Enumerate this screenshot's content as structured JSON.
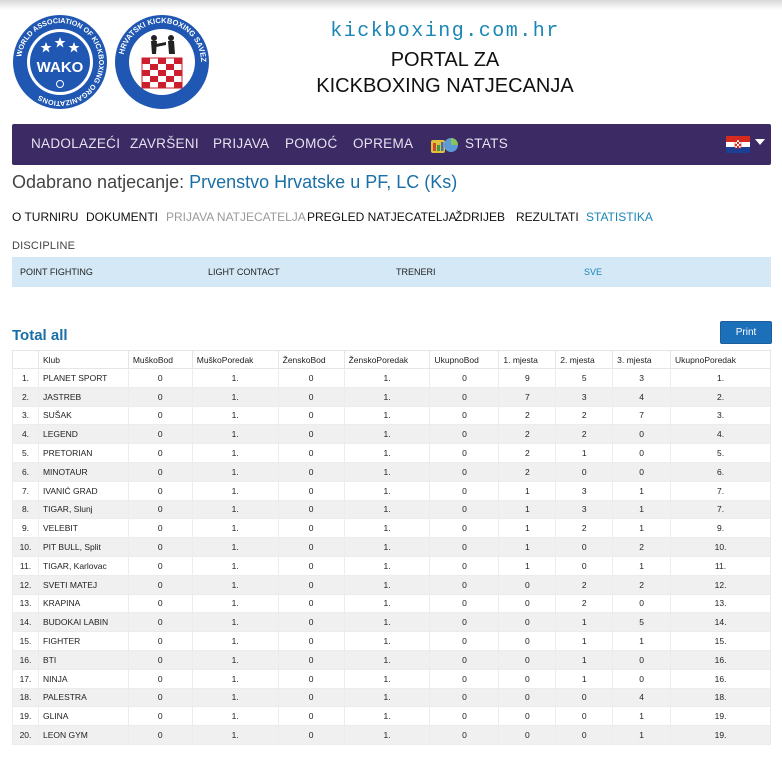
{
  "header": {
    "site_url": "kickboxing.com.hr",
    "title_line1": "PORTAL ZA",
    "title_line2": "KICKBOXING NATJECANJA",
    "wako_logo": {
      "outer_text": "WORLD ASSOCIATION OF KICKBOXING ORGANIZATIONS",
      "inner_text": "WAKO"
    },
    "hks_logo": {
      "outer_text": "HRVATSKI KICKBOXING SAVEZ"
    }
  },
  "nav": {
    "items": [
      "NADOLAZEĆI",
      "ZAVRŠENI",
      "PRIJAVA",
      "POMOĆ",
      "OPREMA"
    ],
    "stats_label": "STATS",
    "stats_icon": "stats-icon",
    "language_icon": "croatian-flag-icon"
  },
  "competition": {
    "prefix": "Odabrano natjecanje:",
    "name": "Prvenstvo Hrvatske u PF, LC (Ks)"
  },
  "subnav": [
    "O TURNIRU",
    "DOKUMENTI",
    "PRIJAVA NATJECATELJA",
    "PREGLED NATJECATELJA",
    "ŽDRIJEB",
    "REZULTATI",
    "STATISTIKA"
  ],
  "disciplines": {
    "label": "DISCIPLINE",
    "items": [
      "POINT FIGHTING",
      "LIGHT CONTACT",
      "TRENERI",
      "SVE"
    ]
  },
  "totals": {
    "title": "Total all",
    "print_label": "Print",
    "columns": [
      "",
      "Klub",
      "MuškoBod",
      "MuškoPoredak",
      "ŽenskoBod",
      "ŽenskoPoredak",
      "UkupnoBod",
      "1. mjesta",
      "2. mjesta",
      "3. mjesta",
      "UkupnoPoredak"
    ],
    "rows": [
      [
        "1.",
        "PLANET SPORT",
        "0",
        "1.",
        "0",
        "1.",
        "0",
        "9",
        "5",
        "3",
        "1."
      ],
      [
        "2.",
        "JASTREB",
        "0",
        "1.",
        "0",
        "1.",
        "0",
        "7",
        "3",
        "4",
        "2."
      ],
      [
        "3.",
        "SUŠAK",
        "0",
        "1.",
        "0",
        "1.",
        "0",
        "2",
        "2",
        "7",
        "3."
      ],
      [
        "4.",
        "LEGEND",
        "0",
        "1.",
        "0",
        "1.",
        "0",
        "2",
        "2",
        "0",
        "4."
      ],
      [
        "5.",
        "PRETORIAN",
        "0",
        "1.",
        "0",
        "1.",
        "0",
        "2",
        "1",
        "0",
        "5."
      ],
      [
        "6.",
        "MINOTAUR",
        "0",
        "1.",
        "0",
        "1.",
        "0",
        "2",
        "0",
        "0",
        "6."
      ],
      [
        "7.",
        "IVANIĆ GRAD",
        "0",
        "1.",
        "0",
        "1.",
        "0",
        "1",
        "3",
        "1",
        "7."
      ],
      [
        "8.",
        "TIGAR, Slunj",
        "0",
        "1.",
        "0",
        "1.",
        "0",
        "1",
        "3",
        "1",
        "7."
      ],
      [
        "9.",
        "VELEBIT",
        "0",
        "1.",
        "0",
        "1.",
        "0",
        "1",
        "2",
        "1",
        "9."
      ],
      [
        "10.",
        "PIT BULL, Split",
        "0",
        "1.",
        "0",
        "1.",
        "0",
        "1",
        "0",
        "2",
        "10."
      ],
      [
        "11.",
        "TIGAR, Karlovac",
        "0",
        "1.",
        "0",
        "1.",
        "0",
        "1",
        "0",
        "1",
        "11."
      ],
      [
        "12.",
        "SVETI MATEJ",
        "0",
        "1.",
        "0",
        "1.",
        "0",
        "0",
        "2",
        "2",
        "12."
      ],
      [
        "13.",
        "KRAPINA",
        "0",
        "1.",
        "0",
        "1.",
        "0",
        "0",
        "2",
        "0",
        "13."
      ],
      [
        "14.",
        "BUDOKAI LABIN",
        "0",
        "1.",
        "0",
        "1.",
        "0",
        "0",
        "1",
        "5",
        "14."
      ],
      [
        "15.",
        "FIGHTER",
        "0",
        "1.",
        "0",
        "1.",
        "0",
        "0",
        "1",
        "1",
        "15."
      ],
      [
        "16.",
        "BTI",
        "0",
        "1.",
        "0",
        "1.",
        "0",
        "0",
        "1",
        "0",
        "16."
      ],
      [
        "17.",
        "NINJA",
        "0",
        "1.",
        "0",
        "1.",
        "0",
        "0",
        "1",
        "0",
        "16."
      ],
      [
        "18.",
        "PALESTRA",
        "0",
        "1.",
        "0",
        "1.",
        "0",
        "0",
        "0",
        "4",
        "18."
      ],
      [
        "19.",
        "GLINA",
        "0",
        "1.",
        "0",
        "1.",
        "0",
        "0",
        "0",
        "1",
        "19."
      ],
      [
        "20.",
        "LEON GYM",
        "0",
        "1.",
        "0",
        "1.",
        "0",
        "0",
        "0",
        "1",
        "19."
      ]
    ]
  },
  "colors": {
    "nav_bg": "#3b2a63",
    "accent": "#1a86b6",
    "discipline_bar": "#d4e8f6",
    "print_button": "#1c6fb9"
  }
}
